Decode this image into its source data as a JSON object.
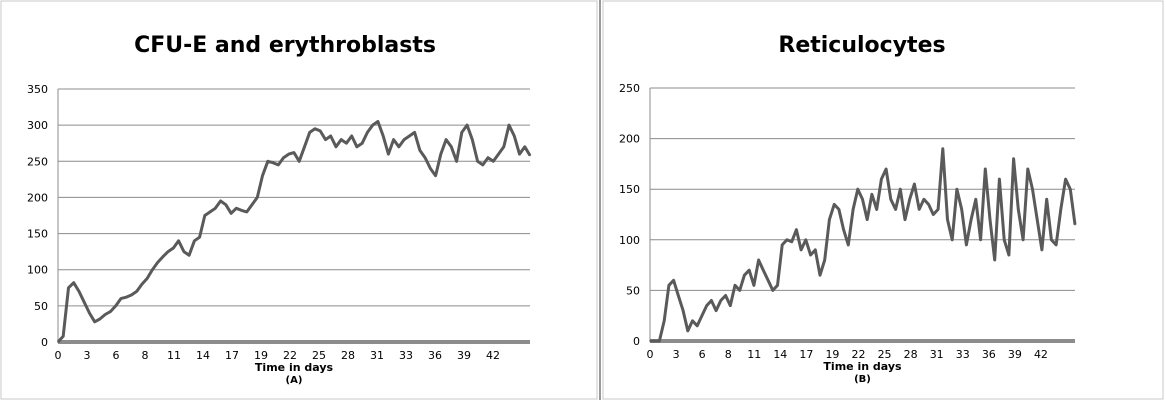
{
  "chart_data": [
    {
      "type": "line",
      "title": "CFU-E and erythroblasts",
      "xlabel": "Time in days",
      "panel_label": "(A)",
      "ylabel": "",
      "xlim": [
        0,
        45
      ],
      "ylim": [
        0,
        350
      ],
      "yticks": [
        0,
        50,
        100,
        150,
        200,
        250,
        300,
        350
      ],
      "xtick_labels": [
        "0",
        "3",
        "6",
        "8",
        "11",
        "14",
        "17",
        "19",
        "22",
        "25",
        "28",
        "31",
        "33",
        "36",
        "39",
        "42"
      ],
      "grid": true,
      "legend": "none",
      "line_color": "#5a5a5a",
      "series": [
        {
          "x": [
            0,
            0.5,
            1,
            1.5,
            2,
            2.5,
            3,
            3.5,
            4,
            4.5,
            5,
            5.5,
            6,
            6.5,
            7,
            7.5,
            8,
            8.5,
            9,
            9.5,
            10,
            10.5,
            11,
            11.5,
            12,
            12.5,
            13,
            13.5,
            14,
            14.5,
            15,
            15.5,
            16,
            16.5,
            17,
            17.5,
            18,
            18.5,
            19,
            19.5,
            20,
            20.5,
            21,
            21.5,
            22,
            22.5,
            23,
            23.5,
            24,
            24.5,
            25,
            25.5,
            26,
            26.5,
            27,
            27.5,
            28,
            28.5,
            29,
            29.5,
            30,
            30.5,
            31,
            31.5,
            32,
            32.5,
            33,
            33.5,
            34,
            34.5,
            35,
            35.5,
            36,
            36.5,
            37,
            37.5,
            38,
            38.5,
            39,
            39.5,
            40,
            40.5,
            41,
            41.5,
            42,
            42.5,
            43,
            43.5,
            44,
            44.5,
            45
          ],
          "y": [
            0,
            8,
            75,
            82,
            70,
            55,
            40,
            28,
            32,
            38,
            42,
            50,
            60,
            62,
            65,
            70,
            80,
            88,
            100,
            110,
            118,
            125,
            130,
            140,
            125,
            120,
            140,
            145,
            175,
            180,
            185,
            195,
            190,
            178,
            185,
            182,
            180,
            190,
            200,
            230,
            250,
            248,
            245,
            255,
            260,
            262,
            250,
            270,
            290,
            295,
            292,
            280,
            285,
            270,
            280,
            275,
            285,
            270,
            275,
            290,
            300,
            305,
            285,
            260,
            280,
            270,
            280,
            285,
            290,
            265,
            255,
            240,
            230,
            260,
            280,
            270,
            250,
            290,
            300,
            280,
            250,
            245,
            255,
            250,
            260,
            270,
            300,
            285,
            260,
            270,
            258
          ],
          "name": ""
        }
      ]
    },
    {
      "type": "line",
      "title": "Reticulocytes",
      "xlabel": "Time in days",
      "panel_label": "(B)",
      "ylabel": "",
      "xlim": [
        0,
        45
      ],
      "ylim": [
        0,
        250
      ],
      "yticks": [
        0,
        50,
        100,
        150,
        200,
        250
      ],
      "xtick_labels": [
        "0",
        "3",
        "6",
        "8",
        "11",
        "14",
        "17",
        "19",
        "22",
        "25",
        "28",
        "31",
        "33",
        "36",
        "39",
        "42"
      ],
      "grid": true,
      "legend": "none",
      "line_color": "#5a5a5a",
      "series": [
        {
          "x": [
            0,
            0.5,
            1,
            1.5,
            2,
            2.5,
            3,
            3.5,
            4,
            4.5,
            5,
            5.5,
            6,
            6.5,
            7,
            7.5,
            8,
            8.5,
            9,
            9.5,
            10,
            10.5,
            11,
            11.5,
            12,
            12.5,
            13,
            13.5,
            14,
            14.5,
            15,
            15.5,
            16,
            16.5,
            17,
            17.5,
            18,
            18.5,
            19,
            19.5,
            20,
            20.5,
            21,
            21.5,
            22,
            22.5,
            23,
            23.5,
            24,
            24.5,
            25,
            25.5,
            26,
            26.5,
            27,
            27.5,
            28,
            28.5,
            29,
            29.5,
            30,
            30.5,
            31,
            31.5,
            32,
            32.5,
            33,
            33.5,
            34,
            34.5,
            35,
            35.5,
            36,
            36.5,
            37,
            37.5,
            38,
            38.5,
            39,
            39.5,
            40,
            40.5,
            41,
            41.5,
            42,
            42.5,
            43,
            43.5,
            44,
            44.5,
            45
          ],
          "y": [
            0,
            0,
            0,
            20,
            55,
            60,
            45,
            30,
            10,
            20,
            15,
            25,
            35,
            40,
            30,
            40,
            45,
            35,
            55,
            50,
            65,
            70,
            55,
            80,
            70,
            60,
            50,
            55,
            95,
            100,
            98,
            110,
            90,
            100,
            85,
            90,
            65,
            80,
            120,
            135,
            130,
            110,
            95,
            130,
            150,
            140,
            120,
            145,
            130,
            160,
            170,
            140,
            130,
            150,
            120,
            140,
            155,
            130,
            140,
            135,
            125,
            130,
            190,
            120,
            100,
            150,
            130,
            95,
            120,
            140,
            100,
            170,
            120,
            80,
            160,
            100,
            85,
            180,
            130,
            100,
            170,
            150,
            120,
            90,
            140,
            100,
            95,
            130,
            160,
            150,
            115
          ],
          "name": ""
        }
      ]
    }
  ]
}
